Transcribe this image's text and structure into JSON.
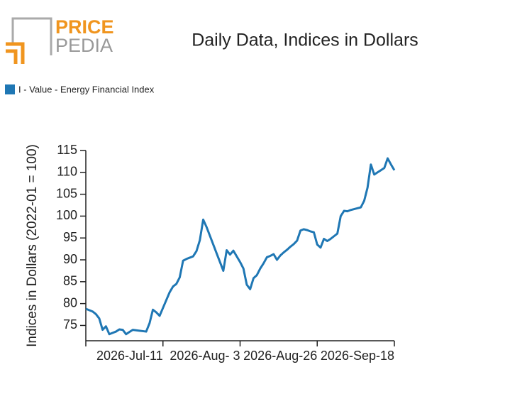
{
  "logo": {
    "top": "PRICE",
    "bottom": "PEDIA"
  },
  "chart_data": {
    "type": "line",
    "title": "Daily Data, Indices in Dollars",
    "y_label": "Indices in Dollars (2022-01 = 100)",
    "legend_position": "top-left",
    "x": [
      "2026-06-18",
      "2026-06-19",
      "2026-06-20",
      "2026-06-21",
      "2026-06-22",
      "2026-06-23",
      "2026-06-24",
      "2026-06-25",
      "2026-06-26",
      "2026-06-27",
      "2026-06-28",
      "2026-06-29",
      "2026-06-30",
      "2026-07-01",
      "2026-07-02",
      "2026-07-03",
      "2026-07-04",
      "2026-07-05",
      "2026-07-06",
      "2026-07-07",
      "2026-07-08",
      "2026-07-09",
      "2026-07-10",
      "2026-07-11",
      "2026-07-12",
      "2026-07-13",
      "2026-07-14",
      "2026-07-15",
      "2026-07-16",
      "2026-07-17",
      "2026-07-18",
      "2026-07-19",
      "2026-07-20",
      "2026-07-21",
      "2026-07-22",
      "2026-07-23",
      "2026-07-24",
      "2026-07-25",
      "2026-07-26",
      "2026-07-27",
      "2026-07-28",
      "2026-07-29",
      "2026-07-30",
      "2026-07-31",
      "2026-08-01",
      "2026-08-02",
      "2026-08-03",
      "2026-08-04",
      "2026-08-05",
      "2026-08-06",
      "2026-08-07",
      "2026-08-08",
      "2026-08-09",
      "2026-08-10",
      "2026-08-11",
      "2026-08-12",
      "2026-08-13",
      "2026-08-14",
      "2026-08-15",
      "2026-08-16",
      "2026-08-17",
      "2026-08-18",
      "2026-08-19",
      "2026-08-20",
      "2026-08-21",
      "2026-08-22",
      "2026-08-23",
      "2026-08-24",
      "2026-08-25",
      "2026-08-26",
      "2026-08-27",
      "2026-08-28",
      "2026-08-29",
      "2026-08-30",
      "2026-08-31",
      "2026-09-01",
      "2026-09-02",
      "2026-09-03",
      "2026-09-04",
      "2026-09-05",
      "2026-09-06",
      "2026-09-07",
      "2026-09-08",
      "2026-09-09",
      "2026-09-10",
      "2026-09-11",
      "2026-09-12",
      "2026-09-13",
      "2026-09-14",
      "2026-09-15",
      "2026-09-16",
      "2026-09-17",
      "2026-09-18"
    ],
    "series": [
      {
        "name": "I - Value - Energy Financial Index",
        "color": "#1f77b4",
        "values": [
          78.8,
          78.5,
          78.2,
          77.6,
          76.6,
          74.0,
          74.8,
          73.0,
          73.3,
          73.6,
          74.1,
          74.0,
          73.0,
          73.5,
          74.0,
          73.9,
          73.8,
          73.7,
          73.6,
          75.5,
          78.6,
          78.0,
          77.2,
          79.0,
          80.8,
          82.6,
          83.9,
          84.5,
          86.0,
          89.8,
          90.2,
          90.5,
          90.8,
          92.0,
          94.5,
          99.2,
          97.5,
          95.5,
          93.5,
          91.5,
          89.5,
          87.5,
          92.2,
          91.2,
          92.1,
          90.8,
          89.5,
          88.0,
          84.3,
          83.3,
          85.8,
          86.5,
          88.0,
          89.2,
          90.6,
          90.9,
          91.3,
          90.0,
          91.0,
          91.7,
          92.3,
          93.0,
          93.6,
          94.4,
          96.7,
          97.0,
          96.8,
          96.5,
          96.3,
          93.5,
          92.8,
          94.8,
          94.3,
          94.8,
          95.4,
          96.0,
          100.0,
          101.2,
          101.1,
          101.4,
          101.6,
          101.8,
          102.0,
          103.5,
          106.5,
          111.8,
          109.5,
          110.0,
          110.5,
          111.0,
          113.2,
          111.8,
          110.5
        ]
      }
    ],
    "xlim": [
      "2026-06-18",
      "2026-09-18"
    ],
    "xticks": [
      {
        "value": "2026-07-11",
        "label": "2026-Jul-11"
      },
      {
        "value": "2026-08-03",
        "label": "2026-Aug- 3"
      },
      {
        "value": "2026-08-26",
        "label": "2026-Aug-26"
      },
      {
        "value": "2026-09-18",
        "label": "2026-Sep-18"
      }
    ],
    "ylim": [
      71.5,
      115
    ],
    "yticks": [
      75,
      80,
      85,
      90,
      95,
      100,
      105,
      110,
      115
    ],
    "grid": false
  }
}
